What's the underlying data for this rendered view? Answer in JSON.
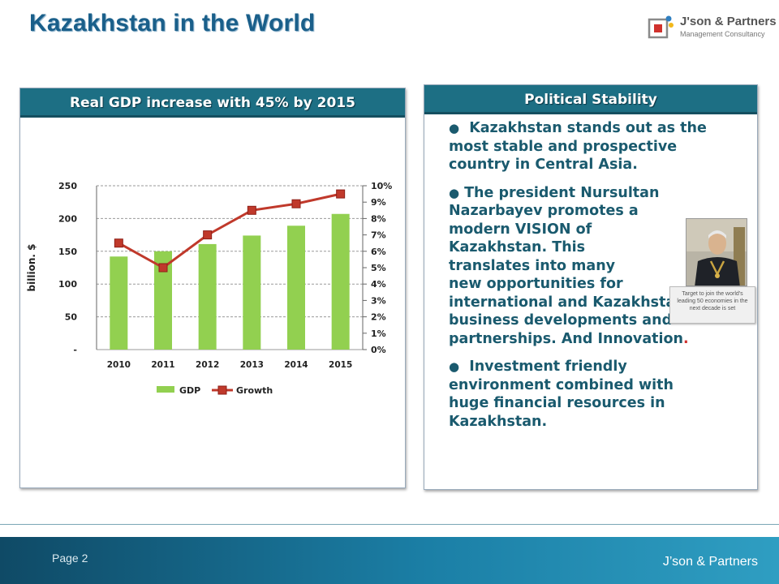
{
  "slide": {
    "title": "Kazakhstan in the World",
    "page_label": "Page 2",
    "footer_brand": "J’son & Partners"
  },
  "logo": {
    "name": "J'son & Partners",
    "subtitle": "Management Consultancy",
    "colors": [
      "#8a8a8a",
      "#d0312d",
      "#2f7fc1",
      "#f2b81b"
    ]
  },
  "left_panel": {
    "header": "Real GDP increase with 45% by 2015"
  },
  "right_panel": {
    "header": "Political Stability",
    "bullets": [
      "Kazakhstan stands out as the most stable and prospective country in Central Asia.",
      "The president Nursultan Nazarbayev promotes a modern VISION of Kazakhstan.  This translates into many new opportunities for international and Kazakhstan business developments and partnerships. And Innovation",
      "Investment friendly environment combined with huge financial resources in Kazakhstan."
    ],
    "bullet2_lines": [
      "The president Nursultan",
      "Nazarbayev promotes a",
      "modern VISION of",
      "Kazakhstan.  This",
      "translates into many",
      "new opportunities for",
      "international and Kazakhstan",
      "business developments and",
      "partnerships. And Innovation"
    ],
    "bullet2_period": ".",
    "photo_caption": "Target to join the world's leading 50 economies in the next decade is set"
  },
  "colors": {
    "title": "#1a5f8a",
    "header_bg": "#1d6f84",
    "bar": "#92d050",
    "line": "#c0392b",
    "footer": "#1b7fa6"
  },
  "chart_data": {
    "type": "bar",
    "categories": [
      "2010",
      "2011",
      "2012",
      "2013",
      "2014",
      "2015"
    ],
    "series": [
      {
        "name": "GDP",
        "type": "bar",
        "axis": "left",
        "values": [
          142,
          150,
          161,
          174,
          189,
          207
        ]
      },
      {
        "name": "Growth",
        "type": "line",
        "axis": "right",
        "values": [
          6.5,
          5.0,
          7.0,
          8.5,
          8.9,
          9.5
        ]
      }
    ],
    "ylabel": "billion. $",
    "ylim": [
      0,
      250
    ],
    "y_ticks": [
      "-",
      "50",
      "100",
      "150",
      "200",
      "250"
    ],
    "y2lim": [
      0,
      10
    ],
    "y2_ticks": [
      "0%",
      "1%",
      "2%",
      "3%",
      "4%",
      "5%",
      "6%",
      "7%",
      "8%",
      "9%",
      "10%"
    ],
    "grid": "horizontal dashed",
    "legend": "bottom"
  }
}
